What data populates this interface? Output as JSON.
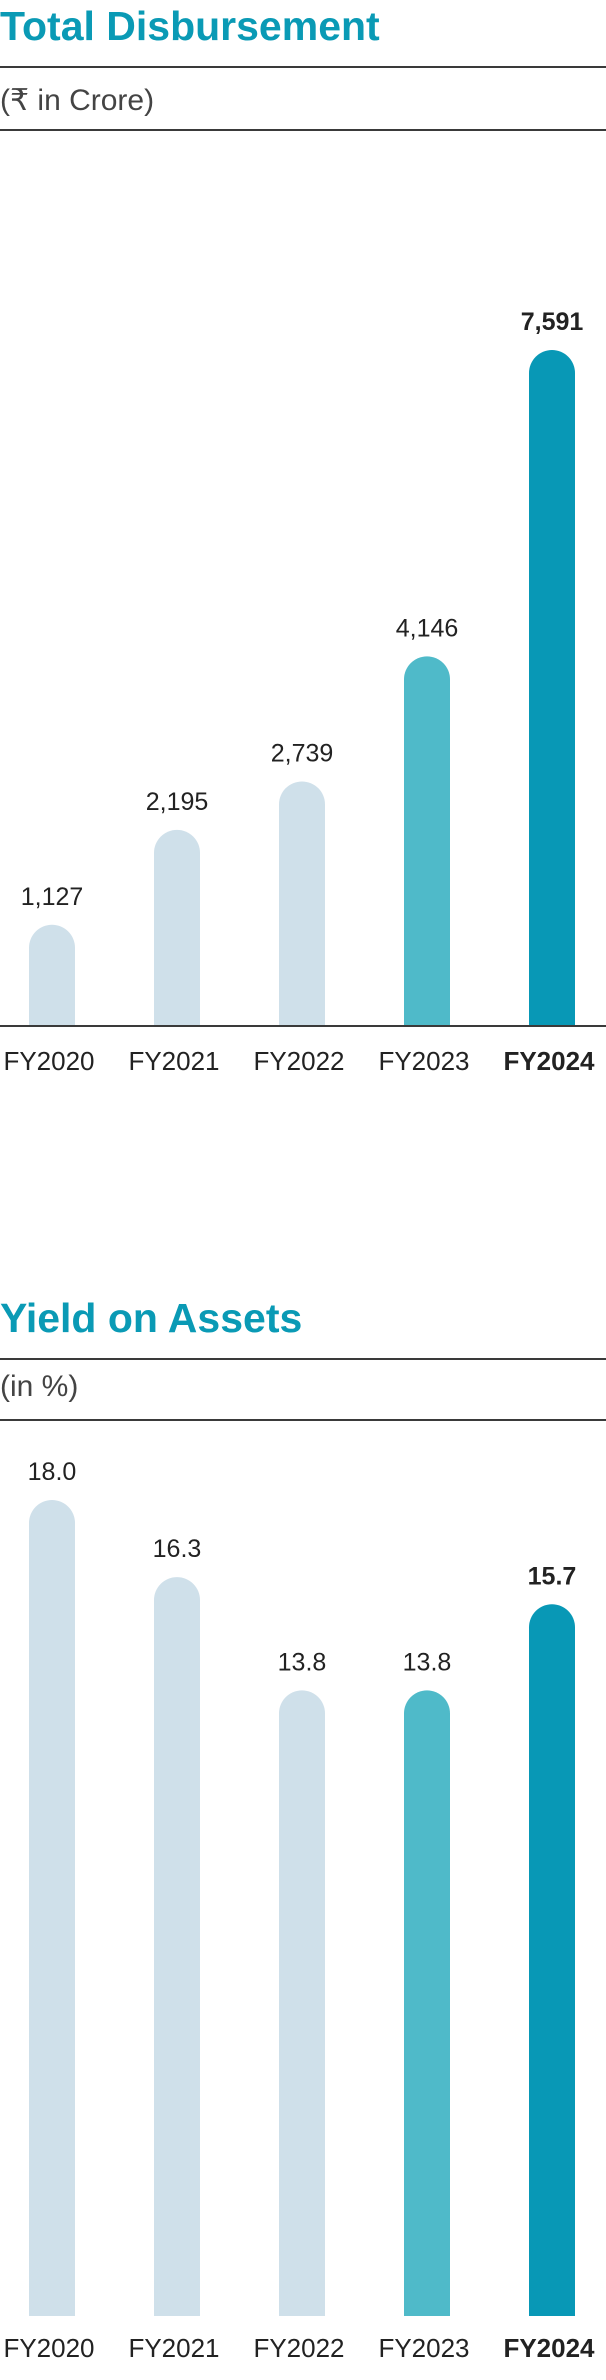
{
  "colors": {
    "accent": "#0a9ab5",
    "muted": "#cfe0ea",
    "mid": "#4fbac9",
    "dark": "#0898b6"
  },
  "chart_data": [
    {
      "type": "bar",
      "title": "Total Disbursement",
      "unit_label": "(₹ in Crore)",
      "categories": [
        "FY2020",
        "FY2021",
        "FY2022",
        "FY2023",
        "FY2024"
      ],
      "values": [
        1127,
        2195,
        2739,
        4146,
        7591
      ],
      "value_labels": [
        "1,127",
        "2,195",
        "2,739",
        "4,146",
        "7,591"
      ],
      "ylim": [
        0,
        7591
      ],
      "bar_colors": [
        "#cfe0ea",
        "#cfe0ea",
        "#cfe0ea",
        "#4fbac9",
        "#0898b6"
      ],
      "highlight": [
        false,
        false,
        false,
        false,
        true
      ],
      "baseline": true
    },
    {
      "type": "bar",
      "title": "Yield on Assets",
      "unit_label": "(in %)",
      "categories": [
        "FY2020",
        "FY2021",
        "FY2022",
        "FY2023",
        "FY2024"
      ],
      "values": [
        18.0,
        16.3,
        13.8,
        13.8,
        15.7
      ],
      "value_labels": [
        "18.0",
        "16.3",
        "13.8",
        "13.8",
        "15.7"
      ],
      "ylim": [
        0,
        18.0
      ],
      "bar_colors": [
        "#cfe0ea",
        "#cfe0ea",
        "#cfe0ea",
        "#4fbac9",
        "#0898b6"
      ],
      "highlight": [
        false,
        false,
        false,
        false,
        true
      ],
      "baseline": false
    }
  ]
}
